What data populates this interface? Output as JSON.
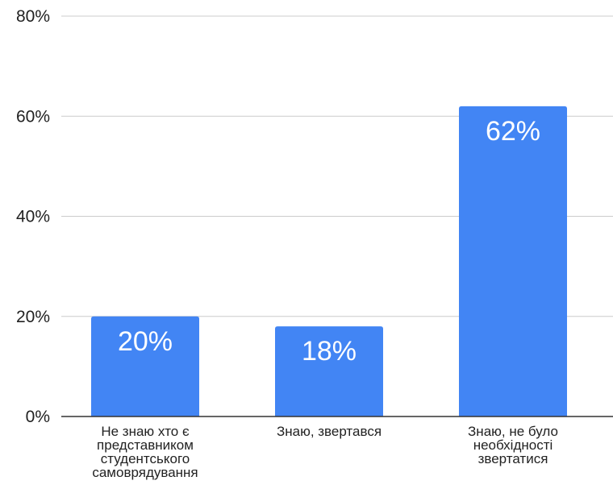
{
  "chart_data": {
    "type": "bar",
    "categories": [
      "Не знаю хто є представником студентського самоврядування",
      "Знаю, звертався",
      "Знаю, не було необхідності звертатися"
    ],
    "category_label_lines": [
      [
        "Не знаю хто є",
        "представником",
        "студентського",
        "самоврядування"
      ],
      [
        "Знаю, звертався"
      ],
      [
        "Знаю, не було",
        "необхідності",
        "звертатися"
      ]
    ],
    "values": [
      20,
      18,
      62
    ],
    "data_labels": [
      "20%",
      "18%",
      "62%"
    ],
    "y_ticks": [
      0,
      20,
      40,
      60,
      80
    ],
    "y_tick_labels": [
      "0%",
      "20%",
      "40%",
      "60%",
      "80%"
    ],
    "ylim": [
      0,
      80
    ],
    "title": "",
    "xlabel": "",
    "ylabel": "",
    "bar_color": "#4285f4",
    "grid": true,
    "legend": "none"
  }
}
